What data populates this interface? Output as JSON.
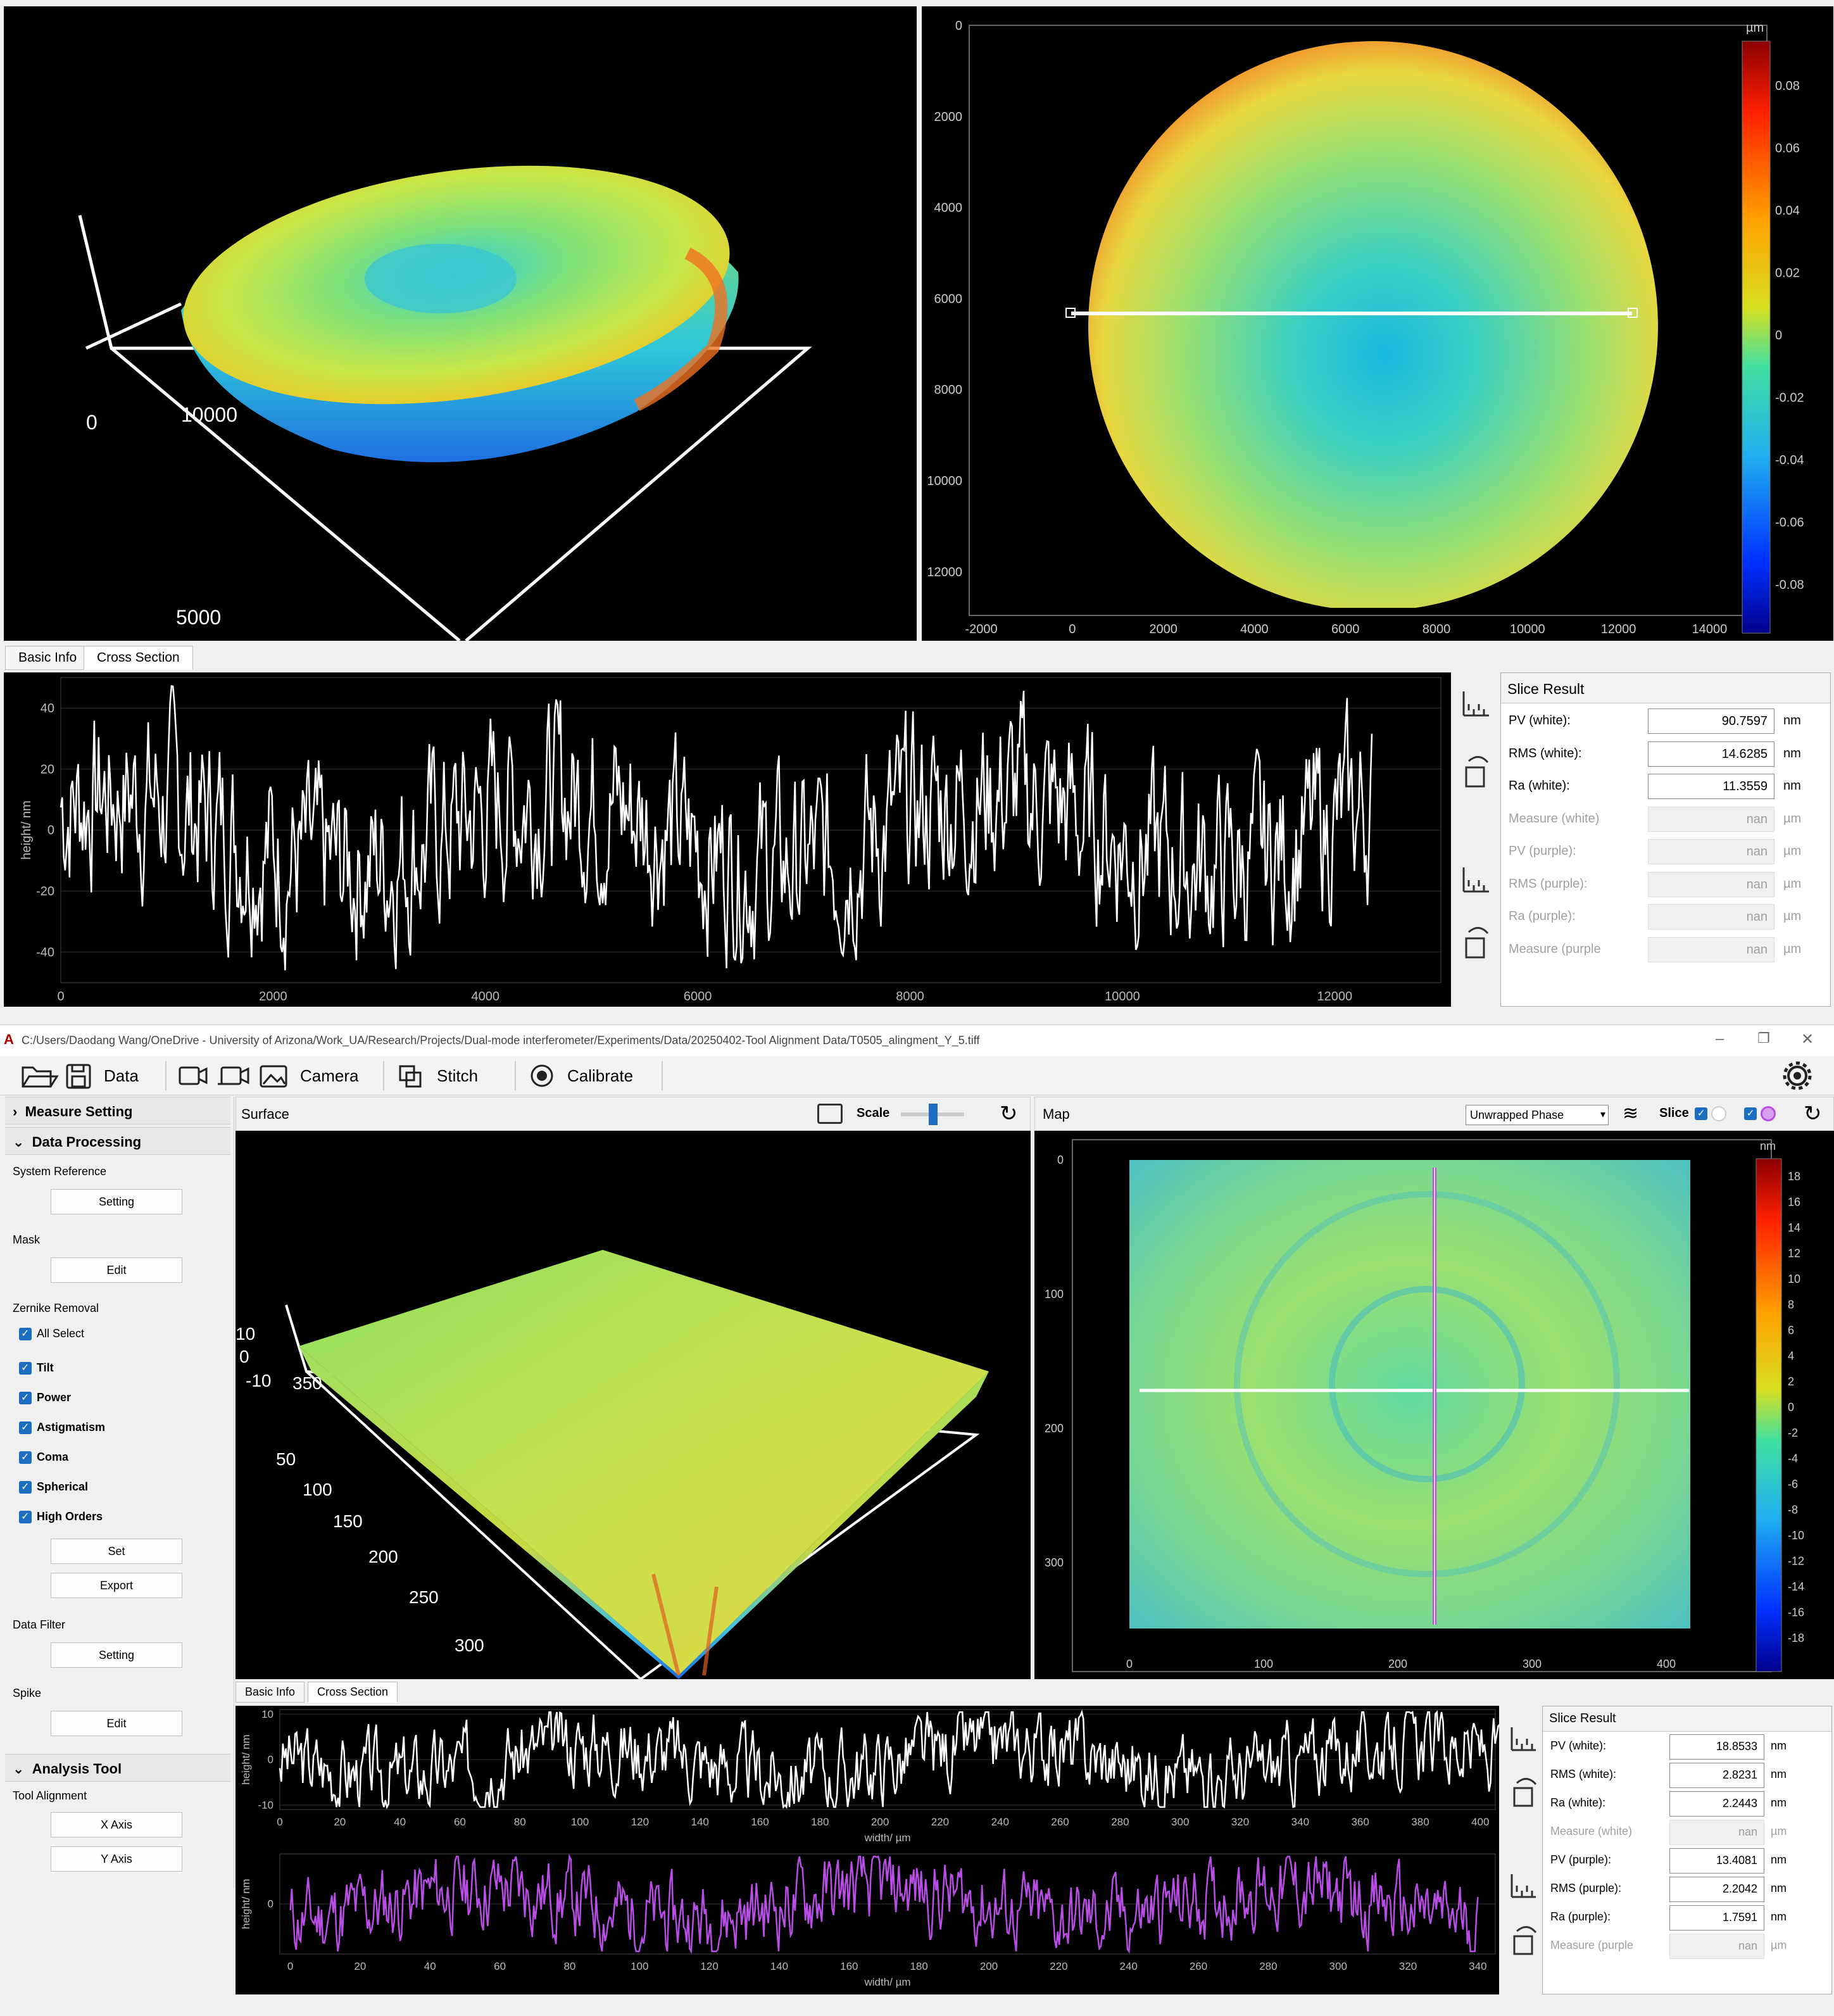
{
  "top_window": {
    "surface3d": {
      "axis_labels": [
        "0",
        "10000",
        "5000"
      ]
    },
    "map": {
      "y_ticks": [
        "0",
        "2000",
        "4000",
        "6000",
        "8000",
        "10000",
        "12000"
      ],
      "x_ticks": [
        "-2000",
        "0",
        "2000",
        "4000",
        "6000",
        "8000",
        "10000",
        "12000",
        "14000"
      ],
      "colorbar_unit": "µm",
      "colorbar_ticks": [
        "0.08",
        "0.06",
        "0.04",
        "0.02",
        "0",
        "-0.02",
        "-0.04",
        "-0.06",
        "-0.08"
      ]
    },
    "tabs": [
      "Basic Info",
      "Cross Section"
    ],
    "cross_section": {
      "ylabel": "height/ nm",
      "y_ticks": [
        "40",
        "20",
        "0",
        "-20",
        "-40"
      ],
      "x_ticks": [
        "0",
        "2000",
        "4000",
        "6000",
        "8000",
        "10000",
        "12000"
      ]
    },
    "slice_result": {
      "title": "Slice Result",
      "rows": [
        {
          "label": "PV (white):",
          "value": "90.7597",
          "unit": "nm",
          "enabled": true
        },
        {
          "label": "RMS (white):",
          "value": "14.6285",
          "unit": "nm",
          "enabled": true
        },
        {
          "label": "Ra (white):",
          "value": "11.3559",
          "unit": "nm",
          "enabled": true
        },
        {
          "label": "Measure (white)",
          "value": "nan",
          "unit": "µm",
          "enabled": false
        },
        {
          "label": "PV (purple):",
          "value": "nan",
          "unit": "µm",
          "enabled": false
        },
        {
          "label": "RMS (purple):",
          "value": "nan",
          "unit": "µm",
          "enabled": false
        },
        {
          "label": "Ra (purple):",
          "value": "nan",
          "unit": "µm",
          "enabled": false
        },
        {
          "label": "Measure (purple",
          "value": "nan",
          "unit": "µm",
          "enabled": false
        }
      ]
    }
  },
  "main_window": {
    "title": "C:/Users/Daodang Wang/OneDrive - University of Arizona/Work_UA/Research/Projects/Dual-mode interferometer/Experiments/Data/20250402-Tool Alignment Data/T0505_alingment_Y_5.tiff",
    "window_controls": {
      "minimize": "–",
      "maximize": "❐",
      "close": "✕"
    },
    "toolbar": {
      "data": "Data",
      "camera": "Camera",
      "stitch": "Stitch",
      "calibrate": "Calibrate"
    },
    "left_panel": {
      "measure_setting": "Measure Setting",
      "data_processing": "Data Processing",
      "system_reference": "System Reference",
      "setting_btn": "Setting",
      "mask": "Mask",
      "edit_btn": "Edit",
      "zernike_removal": "Zernike Removal",
      "all_select": "All Select",
      "zernike_items": [
        "Tilt",
        "Power",
        "Astigmatism",
        "Coma",
        "Spherical",
        "High Orders"
      ],
      "set_btn": "Set",
      "export_btn": "Export",
      "data_filter": "Data Filter",
      "filter_setting_btn": "Setting",
      "spike": "Spike",
      "spike_edit_btn": "Edit",
      "analysis_tool": "Analysis Tool",
      "tool_alignment": "Tool Alignment",
      "x_axis_btn": "X Axis",
      "y_axis_btn": "Y Axis"
    },
    "surface": {
      "title": "Surface",
      "scale_label": "Scale",
      "z_labels": [
        "10",
        "0",
        "-10"
      ],
      "x_labels": [
        "350"
      ],
      "y_labels": [
        "50",
        "100",
        "150",
        "200",
        "250",
        "300"
      ]
    },
    "map": {
      "title": "Map",
      "mode": "Unwrapped Phase",
      "slice_label": "Slice",
      "y_ticks": [
        "0",
        "100",
        "200",
        "300"
      ],
      "x_ticks": [
        "0",
        "100",
        "200",
        "300",
        "400"
      ],
      "colorbar_unit": "nm",
      "colorbar_ticks": [
        "18",
        "16",
        "14",
        "12",
        "10",
        "8",
        "6",
        "4",
        "2",
        "0",
        "-2",
        "-4",
        "-6",
        "-8",
        "-10",
        "-12",
        "-14",
        "-16",
        "-18"
      ]
    },
    "tabs": [
      "Basic Info",
      "Cross Section"
    ],
    "cross_white": {
      "ylabel": "height/ nm",
      "y_ticks": [
        "10",
        "0",
        "-10"
      ],
      "x_ticks": [
        "0",
        "20",
        "40",
        "60",
        "80",
        "100",
        "120",
        "140",
        "160",
        "180",
        "200",
        "220",
        "240",
        "260",
        "280",
        "300",
        "320",
        "340",
        "360",
        "380",
        "400"
      ],
      "xlabel": "width/ µm"
    },
    "cross_purple": {
      "ylabel": "height/ nm",
      "y_ticks": [
        "0"
      ],
      "x_ticks": [
        "0",
        "20",
        "40",
        "60",
        "80",
        "100",
        "120",
        "140",
        "160",
        "180",
        "200",
        "220",
        "240",
        "260",
        "280",
        "300",
        "320",
        "340"
      ],
      "xlabel": "width/ µm"
    },
    "slice_result": {
      "title": "Slice Result",
      "rows": [
        {
          "label": "PV (white):",
          "value": "18.8533",
          "unit": "nm",
          "enabled": true
        },
        {
          "label": "RMS (white):",
          "value": "2.8231",
          "unit": "nm",
          "enabled": true
        },
        {
          "label": "Ra (white):",
          "value": "2.2443",
          "unit": "nm",
          "enabled": true
        },
        {
          "label": "Measure (white)",
          "value": "nan",
          "unit": "µm",
          "enabled": false
        },
        {
          "label": "PV (purple):",
          "value": "13.4081",
          "unit": "nm",
          "enabled": true
        },
        {
          "label": "RMS (purple):",
          "value": "2.2042",
          "unit": "nm",
          "enabled": true
        },
        {
          "label": "Ra (purple):",
          "value": "1.7591",
          "unit": "nm",
          "enabled": true
        },
        {
          "label": "Measure (purple",
          "value": "nan",
          "unit": "µm",
          "enabled": false
        }
      ]
    }
  },
  "colors": {
    "white_line": "#ffffff",
    "purple_line": "#b84ee6",
    "accent": "#1b6ec2"
  }
}
